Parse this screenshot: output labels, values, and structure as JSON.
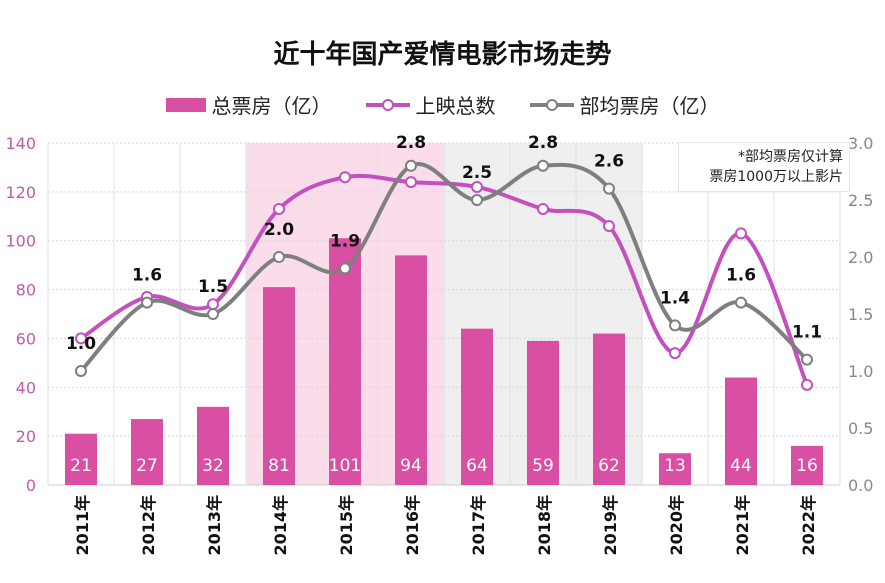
{
  "chart_data": {
    "type": "bar+line",
    "title": "近十年国产爱情电影市场走势",
    "categories": [
      "2011年",
      "2012年",
      "2013年",
      "2014年",
      "2015年",
      "2016年",
      "2017年",
      "2018年",
      "2019年",
      "2020年",
      "2021年",
      "2022年"
    ],
    "series": [
      {
        "name": "总票房（亿）",
        "type": "bar",
        "axis": "left",
        "color": "#d94fa3",
        "values": [
          21,
          27,
          32,
          81,
          101,
          94,
          64,
          59,
          62,
          13,
          44,
          16
        ]
      },
      {
        "name": "上映总数",
        "type": "line",
        "axis": "left",
        "color": "#c450c0",
        "values": [
          60,
          77,
          74,
          113,
          126,
          124,
          122,
          113,
          106,
          54,
          103,
          41
        ]
      },
      {
        "name": "部均票房（亿）",
        "type": "line",
        "axis": "right",
        "color": "#7f7f7f",
        "values": [
          1.0,
          1.6,
          1.5,
          2.0,
          1.9,
          2.8,
          2.5,
          2.8,
          2.6,
          1.4,
          1.6,
          1.1
        ]
      }
    ],
    "left_axis": {
      "range": [
        0,
        140
      ],
      "ticks": [
        "0",
        "20",
        "40",
        "60",
        "80",
        "100",
        "120",
        "140"
      ],
      "color": "#c45aa8"
    },
    "right_axis": {
      "range": [
        0,
        3.0
      ],
      "ticks": [
        "0.0",
        "0.5",
        "1.0",
        "1.5",
        "2.0",
        "2.5",
        "3.0"
      ],
      "color": "#888888"
    },
    "bar_labels": [
      "21",
      "27",
      "32",
      "81",
      "101",
      "94",
      "64",
      "59",
      "62",
      "13",
      "44",
      "16"
    ],
    "line_labels": [
      "1.0",
      "1.6",
      "1.5",
      "2.0",
      "1.9",
      "2.8",
      "2.5",
      "2.8",
      "2.6",
      "1.4",
      "1.6",
      "1.1"
    ],
    "highlight_bands": [
      {
        "from": "2014年",
        "to": "2016年",
        "color": "#fbdcea"
      },
      {
        "from": "2017年",
        "to": "2019年",
        "color": "#efefef"
      }
    ],
    "grid": true,
    "legend_position": "top",
    "note": [
      "*部均票房仅计算",
      "票房1000万以上影片"
    ]
  }
}
